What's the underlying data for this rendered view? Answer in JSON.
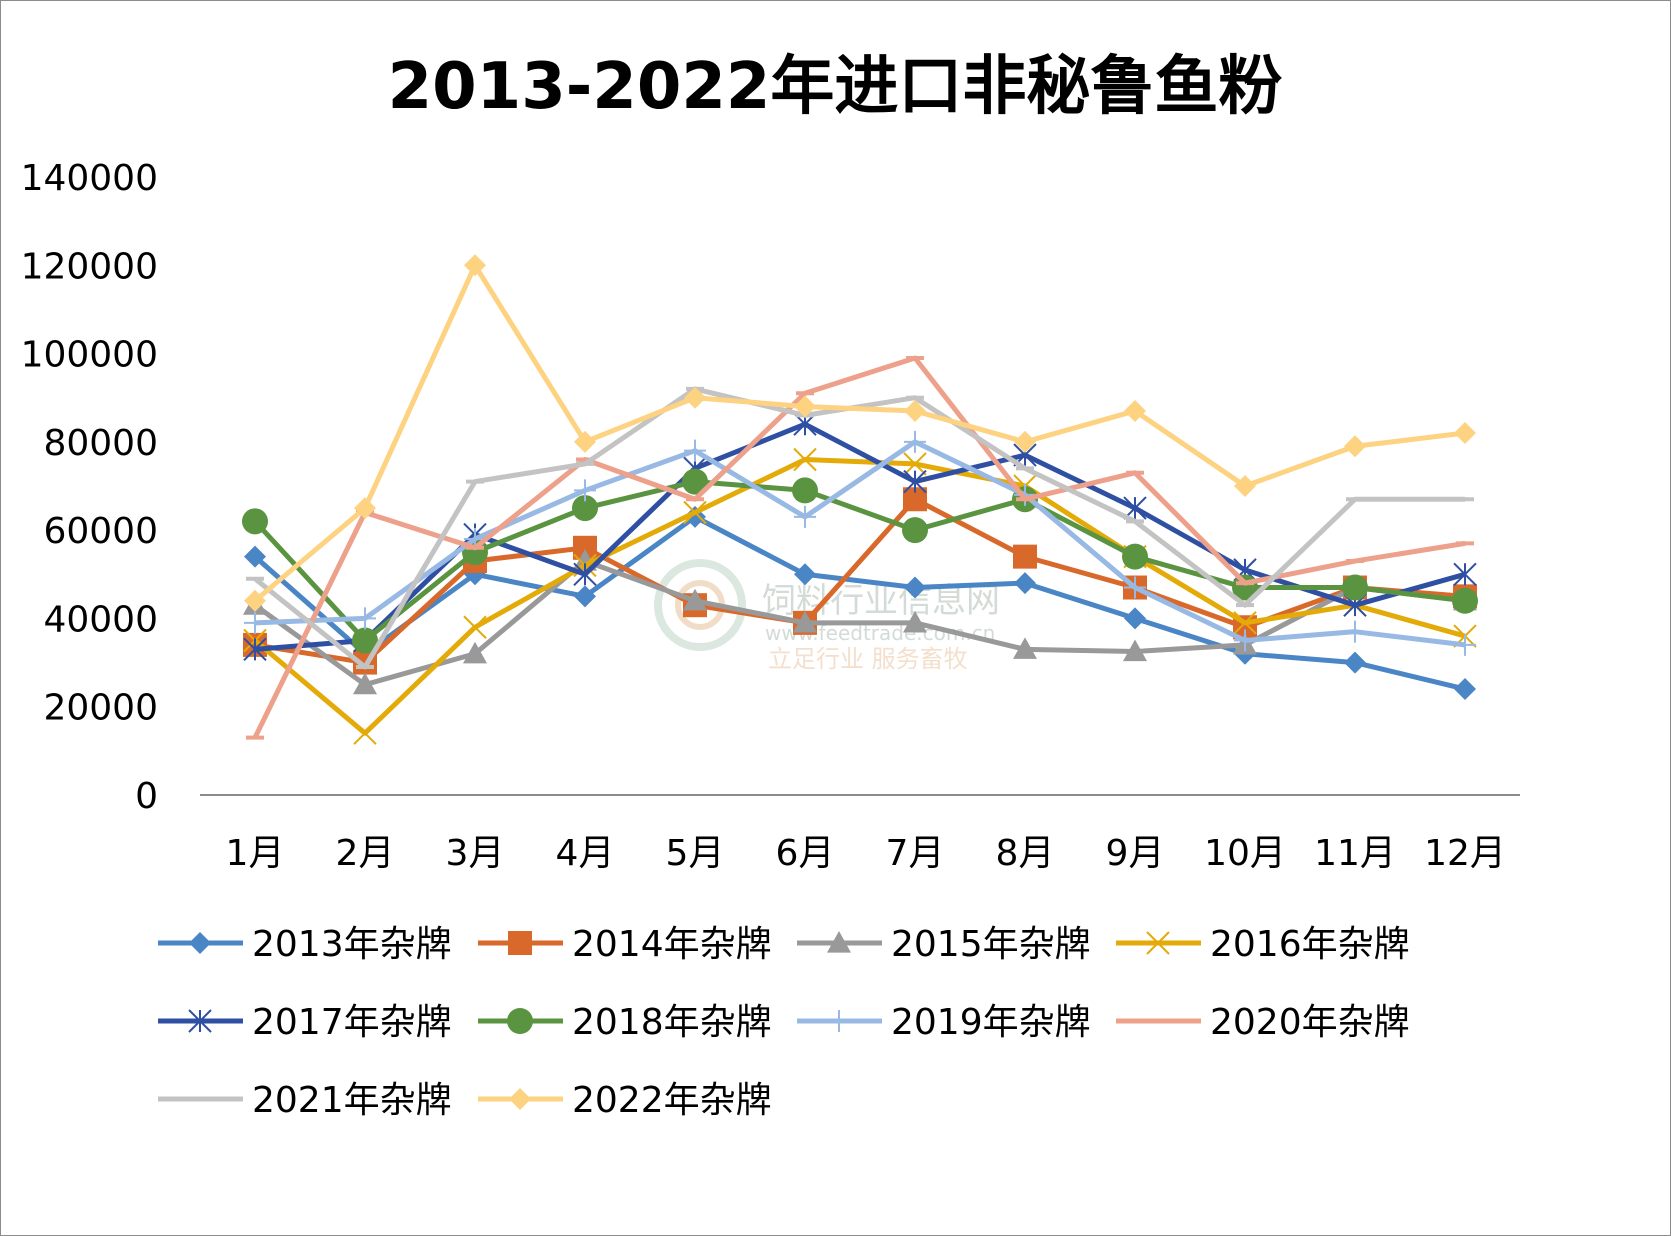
{
  "chart_data": {
    "type": "line",
    "title": "2013-2022年进口非秘鲁鱼粉",
    "categories": [
      "1月",
      "2月",
      "3月",
      "4月",
      "5月",
      "6月",
      "7月",
      "8月",
      "9月",
      "10月",
      "11月",
      "12月"
    ],
    "ylim": [
      0,
      140000
    ],
    "yticks": [
      0,
      20000,
      40000,
      60000,
      80000,
      100000,
      120000,
      140000
    ],
    "grid": false,
    "legend_position": "bottom",
    "series": [
      {
        "name": "2013年杂牌",
        "color": "#4a86c5",
        "marker": "diamond",
        "values": [
          54000,
          32000,
          50000,
          45000,
          63000,
          50000,
          47000,
          48000,
          40000,
          32000,
          30000,
          24000
        ]
      },
      {
        "name": "2014年杂牌",
        "color": "#d9692a",
        "marker": "square",
        "values": [
          34000,
          30000,
          53000,
          56000,
          43000,
          39000,
          67000,
          54000,
          47000,
          38000,
          47000,
          45000
        ]
      },
      {
        "name": "2015年杂牌",
        "color": "#999999",
        "marker": "triangle",
        "values": [
          43000,
          25000,
          32000,
          53000,
          44000,
          39000,
          39000,
          33000,
          32500,
          34000,
          47000,
          44000
        ]
      },
      {
        "name": "2016年杂牌",
        "color": "#e4aa08",
        "marker": "x",
        "values": [
          35000,
          14000,
          38000,
          52000,
          64000,
          76000,
          75000,
          70000,
          54000,
          39000,
          43000,
          36000
        ]
      },
      {
        "name": "2017年杂牌",
        "color": "#2f4fa3",
        "marker": "star",
        "values": [
          33000,
          35000,
          59000,
          50000,
          74000,
          84000,
          71000,
          77000,
          65000,
          51000,
          43000,
          50000
        ]
      },
      {
        "name": "2018年杂牌",
        "color": "#5a9440",
        "marker": "circle",
        "values": [
          62000,
          35000,
          55000,
          65000,
          71000,
          69000,
          60000,
          67000,
          54000,
          47000,
          47000,
          44000
        ]
      },
      {
        "name": "2019年杂牌",
        "color": "#98b9e3",
        "marker": "plus",
        "values": [
          39000,
          40000,
          58000,
          69000,
          78000,
          63000,
          80000,
          68000,
          47000,
          35000,
          37000,
          34000
        ]
      },
      {
        "name": "2020年杂牌",
        "color": "#eda08a",
        "marker": "dash",
        "values": [
          13000,
          64000,
          56000,
          76000,
          67000,
          91000,
          99000,
          67000,
          73000,
          48000,
          53000,
          57000
        ]
      },
      {
        "name": "2021年杂牌",
        "color": "#c3c3c3",
        "marker": "dash",
        "values": [
          49000,
          29000,
          71000,
          75000,
          92000,
          86000,
          90000,
          74000,
          62000,
          43000,
          67000,
          67000
        ]
      },
      {
        "name": "2022年杂牌",
        "color": "#fdd280",
        "marker": "diamond",
        "values": [
          44000,
          65000,
          120000,
          80000,
          90000,
          88000,
          87000,
          80000,
          87000,
          70000,
          79000,
          82000
        ]
      }
    ]
  },
  "watermark": {
    "name": "饲料行业信息网",
    "url": "www.feedtrade.com.cn",
    "slogan": "立足行业 服务畜牧"
  }
}
